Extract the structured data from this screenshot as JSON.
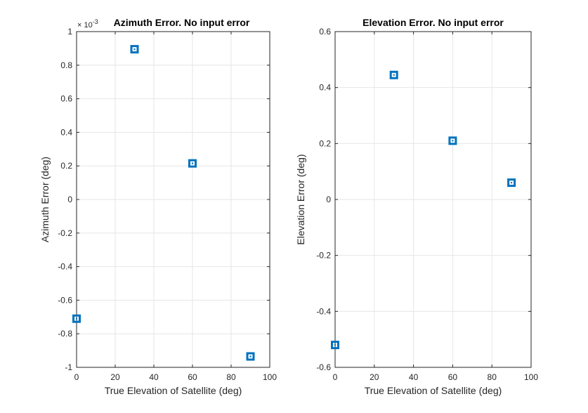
{
  "chart_data": [
    {
      "type": "scatter",
      "title": "Azimuth Error. No input error",
      "xlabel": "True Elevation of Satellite (deg)",
      "ylabel": "Azimuth Error (deg)",
      "xlim": [
        0,
        100
      ],
      "ylim": [
        -1,
        1
      ],
      "x_ticks": [
        "0",
        "20",
        "40",
        "60",
        "80",
        "100"
      ],
      "y_ticks": [
        "-1",
        "-0.8",
        "-0.6",
        "-0.4",
        "-0.2",
        "0",
        "0.2",
        "0.4",
        "0.6",
        "0.8",
        "1"
      ],
      "exponent_label": "10",
      "exponent_power": "-3",
      "grid": true,
      "marker": "square",
      "color": "#0072BD",
      "series": [
        {
          "x": [
            0,
            30,
            60,
            90
          ],
          "y": [
            -0.71,
            0.895,
            0.215,
            -0.935
          ]
        }
      ]
    },
    {
      "type": "scatter",
      "title": "Elevation Error. No input error",
      "xlabel": "True Elevation of Satellite (deg)",
      "ylabel": "Elevation Error (deg)",
      "xlim": [
        0,
        100
      ],
      "ylim": [
        -0.6,
        0.6
      ],
      "x_ticks": [
        "0",
        "20",
        "40",
        "60",
        "80",
        "100"
      ],
      "y_ticks": [
        "-0.6",
        "-0.4",
        "-0.2",
        "0",
        "0.2",
        "0.4",
        "0.6"
      ],
      "grid": true,
      "marker": "square",
      "color": "#0072BD",
      "series": [
        {
          "x": [
            0,
            30,
            60,
            90
          ],
          "y": [
            -0.52,
            0.445,
            0.21,
            0.06
          ]
        }
      ]
    }
  ]
}
